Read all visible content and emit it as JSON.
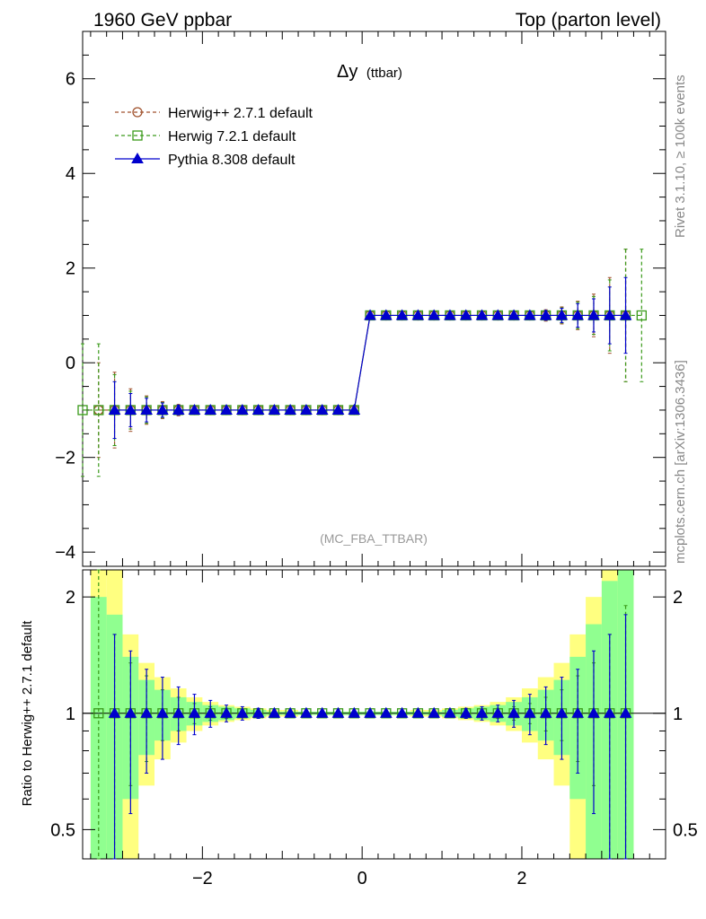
{
  "header": {
    "left": "1960 GeV ppbar",
    "right": "Top (parton level)"
  },
  "side_labels": {
    "rivet": "Rivet 3.1.10, ≥ 100k events",
    "mcplots": "mcplots.cern.ch [arXiv:1306.3436]"
  },
  "colors": {
    "herwigpp": "#a0522d",
    "herwig7": "#3a9a1a",
    "pythia": "#0000cd",
    "band_outer": "#ffff80",
    "band_inner": "#90ff90"
  },
  "chart_data": [
    {
      "type": "scatter",
      "title": "Δy",
      "title_sub": "(ttbar)",
      "watermark": "(MC_FBA_TTBAR)",
      "xlim": [
        -3.5,
        3.8
      ],
      "ylim": [
        -4.3,
        7.0
      ],
      "yticks": [
        -4,
        -2,
        0,
        2,
        4,
        6
      ],
      "xticks": [
        -2,
        0,
        2
      ],
      "legend_position": "top-left",
      "legend": [
        "Herwig++ 2.7.1 default",
        "Herwig 7.2.1 default",
        "Pythia 8.308 default"
      ],
      "x": [
        -3.3,
        -3.1,
        -2.9,
        -2.7,
        -2.5,
        -2.3,
        -2.1,
        -1.9,
        -1.7,
        -1.5,
        -1.3,
        -1.1,
        -0.9,
        -0.7,
        -0.5,
        -0.3,
        -0.1,
        0.1,
        0.3,
        0.5,
        0.7,
        0.9,
        1.1,
        1.3,
        1.5,
        1.7,
        1.9,
        2.1,
        2.3,
        2.5,
        2.7,
        2.9,
        3.1,
        3.3,
        3.5
      ],
      "series": [
        {
          "name": "Herwig++ 2.7.1 default",
          "marker": "circle",
          "line": "dashed",
          "x": [
            -3.3,
            -3.1,
            -2.9,
            -2.7,
            -2.5,
            -2.3,
            -2.1,
            -1.9,
            -1.7,
            -1.5,
            -1.3,
            -1.1,
            -0.9,
            -0.7,
            -0.5,
            -0.3,
            -0.1,
            0.1,
            0.3,
            0.5,
            0.7,
            0.9,
            1.1,
            1.3,
            1.5,
            1.7,
            1.9,
            2.1,
            2.3,
            2.5,
            2.7,
            2.9,
            3.1,
            3.3
          ],
          "y": [
            -1,
            -1,
            -1,
            -1,
            -1,
            -1,
            -1,
            -1,
            -1,
            -1,
            -1,
            -1,
            -1,
            -1,
            -1,
            -1,
            -1,
            1,
            1,
            1,
            1,
            1,
            1,
            1,
            1,
            1,
            1,
            1,
            1,
            1,
            1,
            1,
            1,
            1
          ],
          "yerr": [
            1.0,
            0.8,
            0.45,
            0.3,
            0.18,
            0.12,
            0.08,
            0.05,
            0.04,
            0.03,
            0.02,
            0.02,
            0.01,
            0.01,
            0.01,
            0.01,
            0.01,
            0.01,
            0.01,
            0.01,
            0.01,
            0.01,
            0.02,
            0.02,
            0.03,
            0.04,
            0.05,
            0.08,
            0.12,
            0.18,
            0.3,
            0.45,
            0.8,
            1.4
          ]
        },
        {
          "name": "Herwig 7.2.1 default",
          "marker": "square",
          "line": "dashed",
          "x": [
            -3.5,
            -3.3,
            -3.1,
            -2.9,
            -2.7,
            -2.5,
            -2.3,
            -2.1,
            -1.9,
            -1.7,
            -1.5,
            -1.3,
            -1.1,
            -0.9,
            -0.7,
            -0.5,
            -0.3,
            -0.1,
            0.1,
            0.3,
            0.5,
            0.7,
            0.9,
            1.1,
            1.3,
            1.5,
            1.7,
            1.9,
            2.1,
            2.3,
            2.5,
            2.7,
            2.9,
            3.1,
            3.3,
            3.5
          ],
          "y": [
            -1,
            -1,
            -1,
            -1,
            -1,
            -1,
            -1,
            -1,
            -1,
            -1,
            -1,
            -1,
            -1,
            -1,
            -1,
            -1,
            -1,
            -1,
            1,
            1,
            1,
            1,
            1,
            1,
            1,
            1,
            1,
            1,
            1,
            1,
            1,
            1,
            1,
            1,
            1,
            1
          ],
          "yerr": [
            1.4,
            1.4,
            0.75,
            0.4,
            0.28,
            0.16,
            0.1,
            0.07,
            0.05,
            0.04,
            0.03,
            0.02,
            0.02,
            0.01,
            0.01,
            0.01,
            0.01,
            0.01,
            0.01,
            0.01,
            0.01,
            0.01,
            0.01,
            0.02,
            0.02,
            0.03,
            0.04,
            0.05,
            0.07,
            0.1,
            0.16,
            0.28,
            0.4,
            0.75,
            1.4,
            1.4
          ]
        },
        {
          "name": "Pythia 8.308 default",
          "marker": "triangle",
          "line": "solid",
          "x": [
            -3.1,
            -2.9,
            -2.7,
            -2.5,
            -2.3,
            -2.1,
            -1.9,
            -1.7,
            -1.5,
            -1.3,
            -1.1,
            -0.9,
            -0.7,
            -0.5,
            -0.3,
            -0.1,
            0.1,
            0.3,
            0.5,
            0.7,
            0.9,
            1.1,
            1.3,
            1.5,
            1.7,
            1.9,
            2.1,
            2.3,
            2.5,
            2.7,
            2.9,
            3.1,
            3.3
          ],
          "y": [
            -1,
            -1,
            -1,
            -1,
            -1,
            -1,
            -1,
            -1,
            -1,
            -1,
            -1,
            -1,
            -1,
            -1,
            -1,
            -1,
            1,
            1,
            1,
            1,
            1,
            1,
            1,
            1,
            1,
            1,
            1,
            1,
            1,
            1,
            1,
            1,
            1
          ],
          "yerr": [
            0.6,
            0.35,
            0.25,
            0.15,
            0.1,
            0.07,
            0.05,
            0.04,
            0.03,
            0.02,
            0.02,
            0.01,
            0.01,
            0.01,
            0.01,
            0.01,
            0.01,
            0.01,
            0.01,
            0.01,
            0.01,
            0.02,
            0.02,
            0.03,
            0.04,
            0.05,
            0.07,
            0.1,
            0.15,
            0.25,
            0.35,
            0.6,
            0.8
          ]
        }
      ]
    },
    {
      "type": "scatter",
      "ylabel": "Ratio to Herwig++ 2.7.1 default",
      "ylim": [
        0.42,
        2.35
      ],
      "yscale": "log",
      "yticks": [
        0.5,
        1,
        2
      ],
      "xlim": [
        -3.5,
        3.8
      ],
      "xticks": [
        -2,
        0,
        2
      ],
      "bands": {
        "x_edges": [
          -3.4,
          -3.2,
          -3.0,
          -2.8,
          -2.6,
          -2.4,
          -2.2,
          -2.0,
          -1.8,
          -1.6,
          -1.4,
          -1.2,
          -1.0,
          -0.8,
          -0.6,
          -0.4,
          -0.2,
          0.0,
          0.2,
          0.4,
          0.6,
          0.8,
          1.0,
          1.2,
          1.4,
          1.6,
          1.8,
          2.0,
          2.2,
          2.4,
          2.6,
          2.8,
          3.0,
          3.2,
          3.4
        ],
        "outer_half_width": [
          1.5,
          1.5,
          0.6,
          0.35,
          0.24,
          0.16,
          0.1,
          0.07,
          0.05,
          0.04,
          0.03,
          0.02,
          0.02,
          0.01,
          0.01,
          0.01,
          0.01,
          0.01,
          0.01,
          0.01,
          0.02,
          0.02,
          0.03,
          0.04,
          0.05,
          0.07,
          0.1,
          0.16,
          0.24,
          0.35,
          0.6,
          1.0,
          1.5,
          1.5
        ],
        "inner_half_width": [
          1.0,
          0.8,
          0.4,
          0.22,
          0.15,
          0.1,
          0.07,
          0.05,
          0.04,
          0.03,
          0.02,
          0.01,
          0.01,
          0.01,
          0.01,
          0.01,
          0.01,
          0.01,
          0.01,
          0.01,
          0.01,
          0.01,
          0.02,
          0.03,
          0.04,
          0.05,
          0.07,
          0.1,
          0.15,
          0.22,
          0.4,
          0.7,
          1.2,
          1.5
        ]
      },
      "series": [
        {
          "name": "Herwig 7.2.1 default",
          "marker": "square",
          "x": [
            -3.3,
            -3.1,
            -2.9,
            -2.7,
            -2.5,
            -2.3,
            -2.1,
            -1.9,
            -1.7,
            -1.5,
            -1.3,
            -1.1,
            -0.9,
            -0.7,
            -0.5,
            -0.3,
            -0.1,
            0.1,
            0.3,
            0.5,
            0.7,
            0.9,
            1.1,
            1.3,
            1.5,
            1.7,
            1.9,
            2.1,
            2.3,
            2.5,
            2.7,
            2.9,
            3.1,
            3.3
          ],
          "y": [
            1,
            1,
            1,
            1,
            1,
            1,
            1,
            1,
            1,
            1,
            1,
            1,
            1,
            1,
            1,
            1,
            1,
            1,
            1,
            1,
            1,
            1,
            1,
            1,
            1,
            1,
            1,
            1,
            1,
            1,
            1,
            1,
            1,
            1
          ],
          "yerr": [
            1.4,
            0.6,
            0.35,
            0.25,
            0.15,
            0.1,
            0.06,
            0.04,
            0.03,
            0.02,
            0.02,
            0.01,
            0.01,
            0.01,
            0.01,
            0.01,
            0.01,
            0.01,
            0.01,
            0.01,
            0.01,
            0.01,
            0.01,
            0.02,
            0.02,
            0.03,
            0.04,
            0.06,
            0.1,
            0.15,
            0.25,
            0.35,
            0.6,
            0.9
          ]
        },
        {
          "name": "Pythia 8.308 default",
          "marker": "triangle",
          "x": [
            -3.1,
            -2.9,
            -2.7,
            -2.5,
            -2.3,
            -2.1,
            -1.9,
            -1.7,
            -1.5,
            -1.3,
            -1.1,
            -0.9,
            -0.7,
            -0.5,
            -0.3,
            -0.1,
            0.1,
            0.3,
            0.5,
            0.7,
            0.9,
            1.1,
            1.3,
            1.5,
            1.7,
            1.9,
            2.1,
            2.3,
            2.5,
            2.7,
            2.9,
            3.1,
            3.3
          ],
          "y": [
            1,
            1,
            1,
            1,
            1,
            1,
            1,
            1,
            1,
            1,
            1,
            1,
            1,
            1,
            1,
            1,
            1,
            1,
            1,
            1,
            1,
            1,
            1,
            1,
            1,
            1,
            1,
            1,
            1,
            1,
            1,
            1,
            1
          ],
          "yerr": [
            0.6,
            0.45,
            0.3,
            0.24,
            0.17,
            0.12,
            0.08,
            0.05,
            0.04,
            0.03,
            0.02,
            0.01,
            0.01,
            0.01,
            0.01,
            0.01,
            0.01,
            0.01,
            0.01,
            0.01,
            0.01,
            0.02,
            0.03,
            0.04,
            0.05,
            0.08,
            0.12,
            0.17,
            0.24,
            0.3,
            0.45,
            0.6,
            0.8
          ]
        }
      ]
    }
  ]
}
